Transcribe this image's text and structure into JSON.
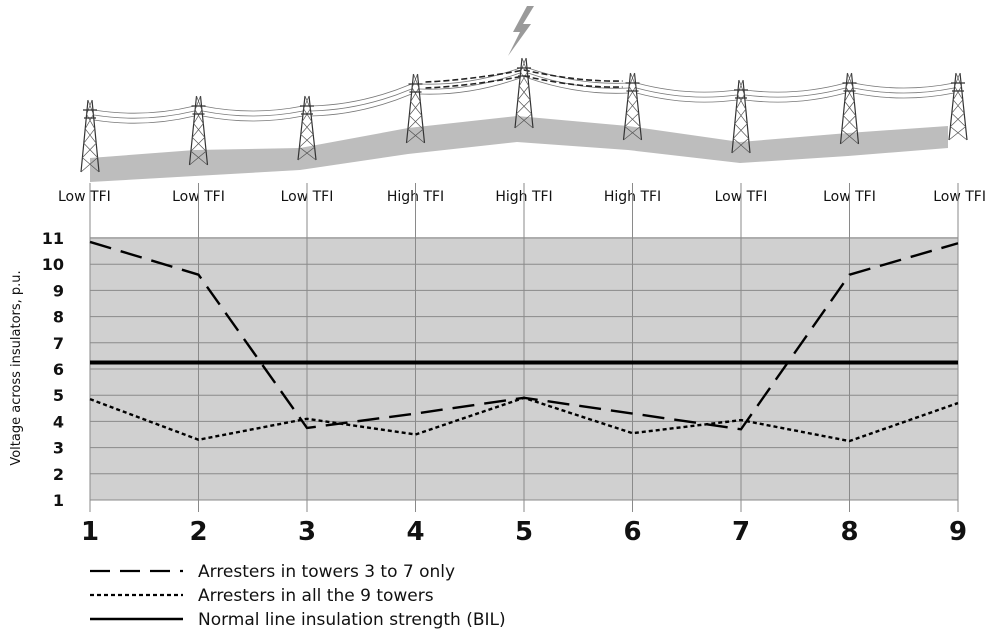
{
  "chart_data": {
    "type": "line",
    "title": "",
    "xlabel": "",
    "ylabel": "Voltage across insulators, p.u.",
    "x": [
      1,
      2,
      3,
      4,
      5,
      6,
      7,
      8,
      9
    ],
    "x_tick_labels": [
      "1",
      "2",
      "3",
      "4",
      "5",
      "6",
      "7",
      "8",
      "9"
    ],
    "ylim": [
      1,
      11
    ],
    "y_ticks": [
      1,
      2,
      3,
      4,
      5,
      6,
      7,
      8,
      9,
      10,
      11
    ],
    "grid": true,
    "tower_labels": [
      "Low TFI",
      "Low TFI",
      "Low TFI",
      "High TFI",
      "High TFI",
      "High TFI",
      "Low TFI",
      "Low TFI",
      "Low TFI"
    ],
    "series": [
      {
        "name": "Arresters in towers 3 to 7 only",
        "style": "dashed",
        "color": "#000000",
        "values": [
          10.85,
          9.6,
          3.75,
          4.3,
          4.9,
          4.3,
          3.7,
          9.6,
          10.8
        ]
      },
      {
        "name": "Arresters in all the 9 towers",
        "style": "dotted",
        "color": "#000000",
        "values": [
          4.85,
          3.3,
          4.1,
          3.5,
          4.9,
          3.55,
          4.05,
          3.25,
          4.7
        ]
      },
      {
        "name": "Normal line insulation strength (BIL)",
        "style": "solid",
        "color": "#000000",
        "values": [
          6.25,
          6.25,
          6.25,
          6.25,
          6.25,
          6.25,
          6.25,
          6.25,
          6.25
        ]
      }
    ],
    "legend_position": "bottom-left",
    "colors": {
      "plot_background": "#d0d0d0",
      "grid": "#8a8a8a",
      "terrain": "#bdbdbd"
    },
    "illustration": "transmission line with nine towers and lightning strike on tower 5"
  }
}
